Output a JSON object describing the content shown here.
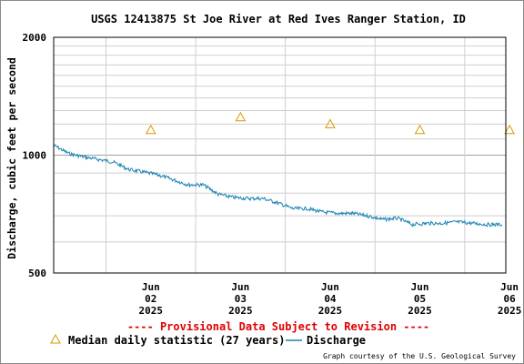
{
  "chart_data": {
    "type": "line",
    "title": "USGS 12413875 St Joe River at Red Ives Ranger Station, ID",
    "ylabel": "Discharge, cubic feet per second",
    "xlabel": "",
    "y_scale": "log",
    "ylim": [
      500,
      2000
    ],
    "y_ticks": [
      "500",
      "1000",
      "2000"
    ],
    "xlim": [
      "2025-06-01 10:00",
      "2025-06-06 11:00"
    ],
    "x_ticks": [
      {
        "date": "2025-06-02 00:00",
        "label_lines": [
          "Jun",
          "02",
          "2025"
        ]
      },
      {
        "date": "2025-06-03 00:00",
        "label_lines": [
          "Jun",
          "03",
          "2025"
        ]
      },
      {
        "date": "2025-06-04 00:00",
        "label_lines": [
          "Jun",
          "04",
          "2025"
        ]
      },
      {
        "date": "2025-06-05 00:00",
        "label_lines": [
          "Jun",
          "05",
          "2025"
        ]
      },
      {
        "date": "2025-06-06 00:00",
        "label_lines": [
          "Jun",
          "06",
          "2025"
        ]
      }
    ],
    "grid": true,
    "series": [
      {
        "name": "Discharge",
        "color": "#1a82b4",
        "x": [
          "2025-06-01 10:00",
          "2025-06-01 14:00",
          "2025-06-01 18:00",
          "2025-06-01 22:00",
          "2025-06-02 02:00",
          "2025-06-02 06:00",
          "2025-06-02 10:00",
          "2025-06-02 14:00",
          "2025-06-02 18:00",
          "2025-06-02 22:00",
          "2025-06-03 02:00",
          "2025-06-03 06:00",
          "2025-06-03 10:00",
          "2025-06-03 14:00",
          "2025-06-03 18:00",
          "2025-06-03 22:00",
          "2025-06-04 02:00",
          "2025-06-04 06:00",
          "2025-06-04 10:00",
          "2025-06-04 14:00",
          "2025-06-04 18:00",
          "2025-06-04 22:00",
          "2025-06-05 02:00",
          "2025-06-05 06:00",
          "2025-06-05 10:00",
          "2025-06-05 14:00",
          "2025-06-05 18:00",
          "2025-06-05 22:00",
          "2025-06-06 02:00",
          "2025-06-06 06:00",
          "2025-06-06 10:00"
        ],
        "values": [
          1060,
          1010,
          990,
          975,
          960,
          920,
          905,
          890,
          865,
          840,
          840,
          795,
          780,
          775,
          775,
          755,
          730,
          730,
          715,
          710,
          710,
          700,
          685,
          690,
          665,
          670,
          670,
          675,
          670,
          665,
          665
        ]
      },
      {
        "name": "Median daily statistic (27 years)",
        "color": "#d49a00",
        "marker": "triangle",
        "x": [
          "2025-06-02 00:00",
          "2025-06-03 00:00",
          "2025-06-04 00:00",
          "2025-06-05 00:00",
          "2025-06-06 00:00"
        ],
        "values": [
          1160,
          1250,
          1200,
          1160,
          1160
        ]
      }
    ],
    "legend": {
      "position": "bottom-left",
      "entries": [
        {
          "label": "Median daily statistic (27 years)",
          "symbol": "triangle",
          "color": "#d49a00"
        },
        {
          "label": "Discharge",
          "symbol": "line",
          "color": "#1a82b4"
        }
      ]
    }
  },
  "provisional_notice": "---- Provisional Data Subject to Revision ----",
  "credit": "Graph courtesy of the U.S. Geological Survey"
}
